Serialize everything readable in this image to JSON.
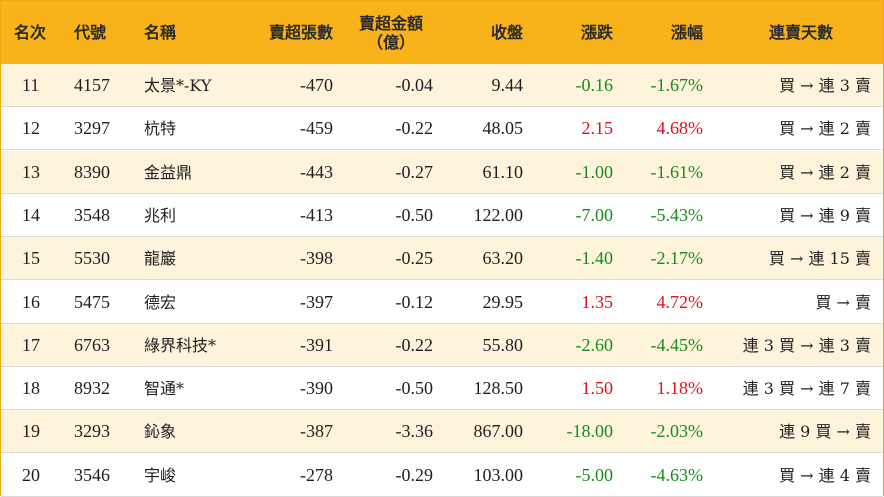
{
  "header": {
    "rank": "名次",
    "code": "代號",
    "name": "名稱",
    "net_sell_lots": "賣超張數",
    "net_sell_amount_line1": "賣超金額",
    "net_sell_amount_line2": "（億）",
    "close": "收盤",
    "change": "漲跌",
    "change_pct": "漲幅",
    "consecutive_days": "連賣天數"
  },
  "colors": {
    "header_bg": "#f8b21a",
    "odd_row_bg": "#fef4dc",
    "up": "#e0101e",
    "down": "#1a8a1a"
  },
  "rows": [
    {
      "rank": "11",
      "code": "4157",
      "name": "太景*-KY",
      "lots": "-470",
      "amount": "-0.04",
      "close": "9.44",
      "change": "-0.16",
      "pct": "-1.67%",
      "trend": "down",
      "days": "買 → 連 3 賣"
    },
    {
      "rank": "12",
      "code": "3297",
      "name": "杭特",
      "lots": "-459",
      "amount": "-0.22",
      "close": "48.05",
      "change": "2.15",
      "pct": "4.68%",
      "trend": "up",
      "days": "買 → 連 2 賣"
    },
    {
      "rank": "13",
      "code": "8390",
      "name": "金益鼎",
      "lots": "-443",
      "amount": "-0.27",
      "close": "61.10",
      "change": "-1.00",
      "pct": "-1.61%",
      "trend": "down",
      "days": "買 → 連 2 賣"
    },
    {
      "rank": "14",
      "code": "3548",
      "name": "兆利",
      "lots": "-413",
      "amount": "-0.50",
      "close": "122.00",
      "change": "-7.00",
      "pct": "-5.43%",
      "trend": "down",
      "days": "買 → 連 9 賣"
    },
    {
      "rank": "15",
      "code": "5530",
      "name": "龍巖",
      "lots": "-398",
      "amount": "-0.25",
      "close": "63.20",
      "change": "-1.40",
      "pct": "-2.17%",
      "trend": "down",
      "days": "買 → 連 15 賣"
    },
    {
      "rank": "16",
      "code": "5475",
      "name": "德宏",
      "lots": "-397",
      "amount": "-0.12",
      "close": "29.95",
      "change": "1.35",
      "pct": "4.72%",
      "trend": "up",
      "days": "買 → 賣"
    },
    {
      "rank": "17",
      "code": "6763",
      "name": "綠界科技*",
      "lots": "-391",
      "amount": "-0.22",
      "close": "55.80",
      "change": "-2.60",
      "pct": "-4.45%",
      "trend": "down",
      "days": "連 3 買 → 連 3 賣"
    },
    {
      "rank": "18",
      "code": "8932",
      "name": "智通*",
      "lots": "-390",
      "amount": "-0.50",
      "close": "128.50",
      "change": "1.50",
      "pct": "1.18%",
      "trend": "up",
      "days": "連 3 買 → 連 7 賣"
    },
    {
      "rank": "19",
      "code": "3293",
      "name": "鈊象",
      "lots": "-387",
      "amount": "-3.36",
      "close": "867.00",
      "change": "-18.00",
      "pct": "-2.03%",
      "trend": "down",
      "days": "連 9 買 → 賣"
    },
    {
      "rank": "20",
      "code": "3546",
      "name": "宇峻",
      "lots": "-278",
      "amount": "-0.29",
      "close": "103.00",
      "change": "-5.00",
      "pct": "-4.63%",
      "trend": "down",
      "days": "買 → 連 4 賣"
    }
  ]
}
